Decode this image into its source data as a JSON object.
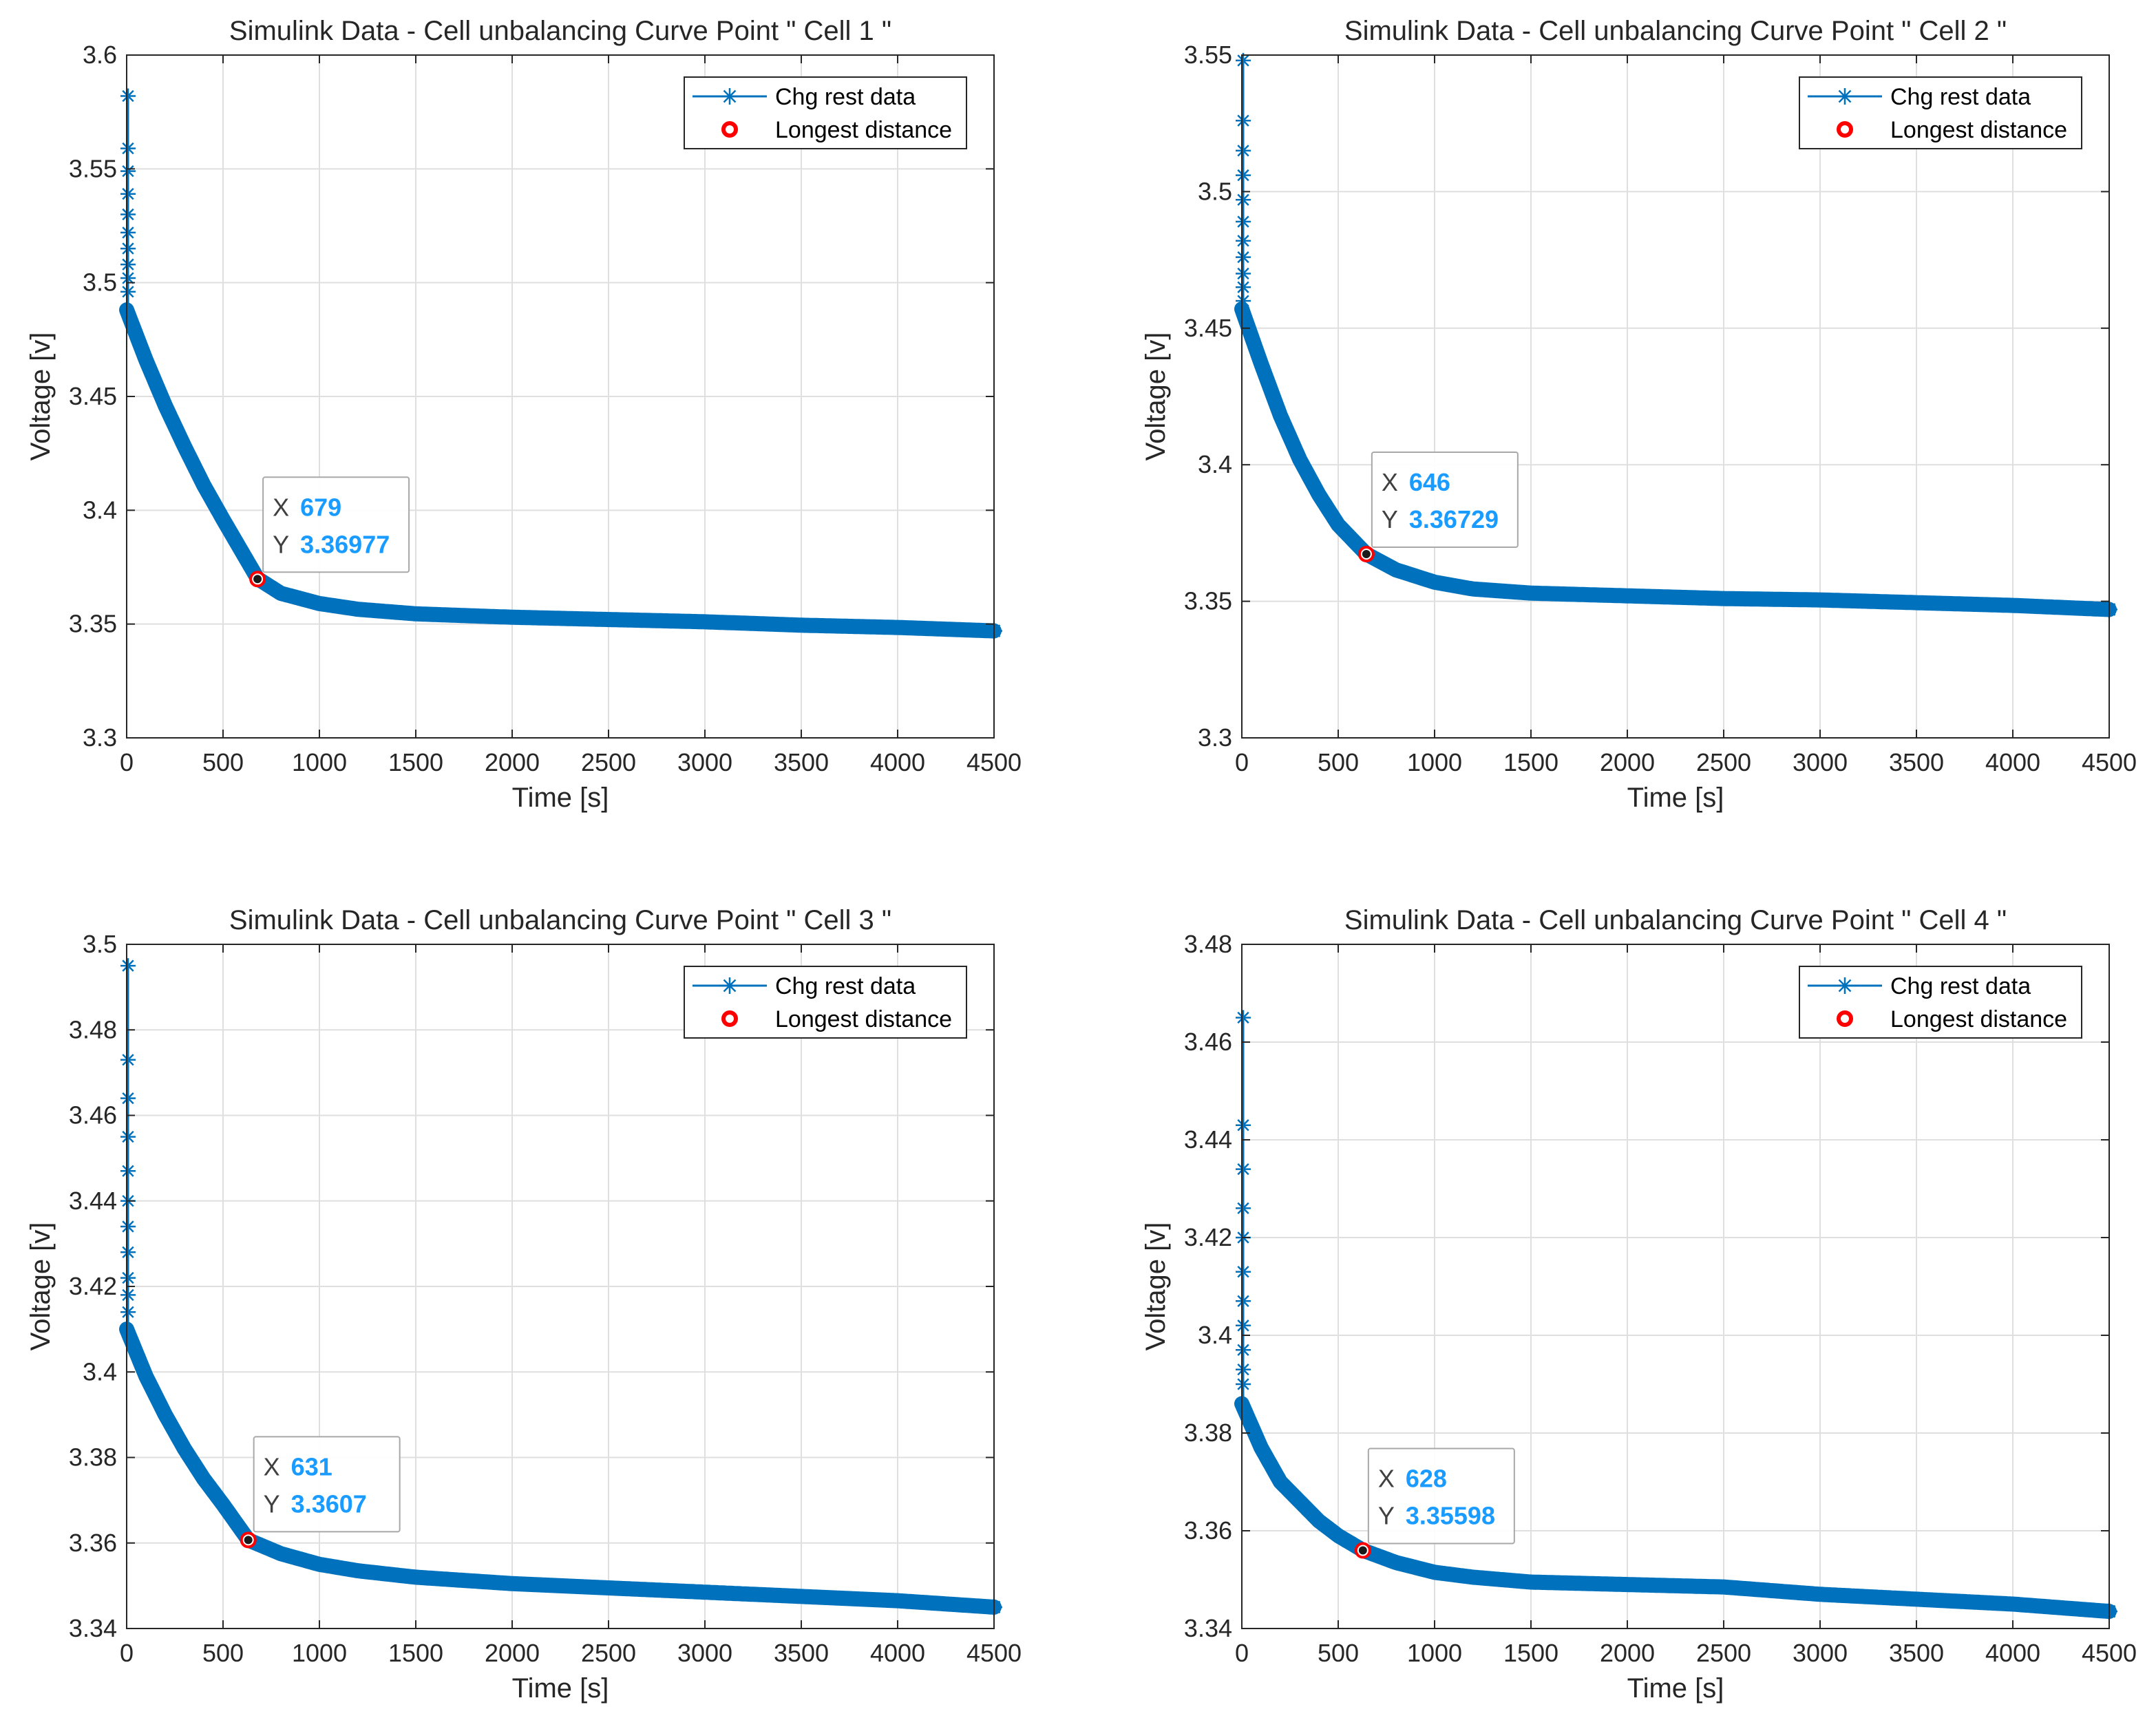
{
  "colors": {
    "series": "#0072bd",
    "marker_edge": "#ff0000",
    "grid": "#dfdfdf",
    "axis": "#262626",
    "datatip_value": "#1a9bff"
  },
  "chart_data": [
    {
      "type": "line",
      "title": "Simulink Data - Cell unbalancing Curve Point \" Cell 1 \"",
      "xlabel": "Time [s]",
      "ylabel": "Voltage [v]",
      "xlim": [
        0,
        4500
      ],
      "ylim": [
        3.3,
        3.6
      ],
      "xticks": [
        0,
        500,
        1000,
        1500,
        2000,
        2500,
        3000,
        3500,
        4000,
        4500
      ],
      "xtick_labels": [
        "0",
        "500",
        "1000",
        "1500",
        "2000",
        "2500",
        "3000",
        "3500",
        "4000",
        "4500"
      ],
      "yticks": [
        3.3,
        3.35,
        3.4,
        3.45,
        3.5,
        3.55,
        3.6
      ],
      "ytick_labels": [
        "3.3",
        "3.35",
        "3.4",
        "3.45",
        "3.5",
        "3.55",
        "3.6"
      ],
      "grid": true,
      "legend_position": "top-right",
      "legend": [
        "Chg rest data",
        "Longest distance"
      ],
      "series": [
        {
          "name": "Chg rest data",
          "spike": [
            3.582,
            3.559,
            3.549,
            3.539,
            3.53,
            3.522,
            3.515,
            3.508,
            3.502,
            3.496
          ],
          "x": [
            0,
            100,
            200,
            300,
            400,
            500,
            679,
            800,
            1000,
            1200,
            1500,
            2000,
            2500,
            3000,
            3500,
            4000,
            4500
          ],
          "y": [
            3.488,
            3.466,
            3.446,
            3.428,
            3.411,
            3.396,
            3.37,
            3.3635,
            3.359,
            3.3565,
            3.3545,
            3.353,
            3.352,
            3.351,
            3.3495,
            3.3485,
            3.347
          ]
        }
      ],
      "marker": {
        "name": "Longest distance",
        "x": 679,
        "y": 3.36977
      },
      "datatip": {
        "x_key": "X",
        "y_key": "Y",
        "x_value": "679",
        "y_value": "3.36977"
      }
    },
    {
      "type": "line",
      "title": "Simulink Data - Cell unbalancing Curve Point \" Cell 2 \"",
      "xlabel": "Time [s]",
      "ylabel": "Voltage [v]",
      "xlim": [
        0,
        4500
      ],
      "ylim": [
        3.3,
        3.55
      ],
      "xticks": [
        0,
        500,
        1000,
        1500,
        2000,
        2500,
        3000,
        3500,
        4000,
        4500
      ],
      "xtick_labels": [
        "0",
        "500",
        "1000",
        "1500",
        "2000",
        "2500",
        "3000",
        "3500",
        "4000",
        "4500"
      ],
      "yticks": [
        3.3,
        3.35,
        3.4,
        3.45,
        3.5,
        3.55
      ],
      "ytick_labels": [
        "3.3",
        "3.35",
        "3.4",
        "3.45",
        "3.5",
        "3.55"
      ],
      "grid": true,
      "legend_position": "top-right",
      "legend": [
        "Chg rest data",
        "Longest distance"
      ],
      "series": [
        {
          "name": "Chg rest data",
          "spike": [
            3.548,
            3.526,
            3.515,
            3.506,
            3.497,
            3.489,
            3.482,
            3.476,
            3.47,
            3.465,
            3.46
          ],
          "x": [
            0,
            100,
            200,
            300,
            400,
            500,
            646,
            800,
            1000,
            1200,
            1500,
            2000,
            2500,
            3000,
            3500,
            4000,
            4500
          ],
          "y": [
            3.457,
            3.437,
            3.418,
            3.402,
            3.389,
            3.378,
            3.3673,
            3.3615,
            3.357,
            3.3545,
            3.353,
            3.352,
            3.351,
            3.3505,
            3.3495,
            3.3485,
            3.347
          ]
        }
      ],
      "marker": {
        "name": "Longest distance",
        "x": 646,
        "y": 3.36729
      },
      "datatip": {
        "x_key": "X",
        "y_key": "Y",
        "x_value": "646",
        "y_value": "3.36729"
      }
    },
    {
      "type": "line",
      "title": "Simulink Data - Cell unbalancing Curve Point \" Cell 3 \"",
      "xlabel": "Time [s]",
      "ylabel": "Voltage [v]",
      "xlim": [
        0,
        4500
      ],
      "ylim": [
        3.34,
        3.5
      ],
      "xticks": [
        0,
        500,
        1000,
        1500,
        2000,
        2500,
        3000,
        3500,
        4000,
        4500
      ],
      "xtick_labels": [
        "0",
        "500",
        "1000",
        "1500",
        "2000",
        "2500",
        "3000",
        "3500",
        "4000",
        "4500"
      ],
      "yticks": [
        3.34,
        3.36,
        3.38,
        3.4,
        3.42,
        3.44,
        3.46,
        3.48,
        3.5
      ],
      "ytick_labels": [
        "3.34",
        "3.36",
        "3.38",
        "3.4",
        "3.42",
        "3.44",
        "3.46",
        "3.48",
        "3.5"
      ],
      "grid": true,
      "legend_position": "top-right",
      "legend": [
        "Chg rest data",
        "Longest distance"
      ],
      "series": [
        {
          "name": "Chg rest data",
          "spike": [
            3.495,
            3.473,
            3.464,
            3.455,
            3.447,
            3.44,
            3.434,
            3.428,
            3.422,
            3.418,
            3.414
          ],
          "x": [
            0,
            100,
            200,
            300,
            400,
            500,
            631,
            800,
            1000,
            1200,
            1500,
            2000,
            2500,
            3000,
            3500,
            4000,
            4500
          ],
          "y": [
            3.41,
            3.399,
            3.39,
            3.382,
            3.375,
            3.369,
            3.3607,
            3.3575,
            3.355,
            3.3535,
            3.352,
            3.3505,
            3.3495,
            3.3485,
            3.3475,
            3.3465,
            3.345
          ]
        }
      ],
      "marker": {
        "name": "Longest distance",
        "x": 631,
        "y": 3.3607
      },
      "datatip": {
        "x_key": "X",
        "y_key": "Y",
        "x_value": "631",
        "y_value": "3.3607"
      }
    },
    {
      "type": "line",
      "title": "Simulink Data - Cell unbalancing Curve Point \" Cell 4 \"",
      "xlabel": "Time [s]",
      "ylabel": "Voltage [v]",
      "xlim": [
        0,
        4500
      ],
      "ylim": [
        3.34,
        3.48
      ],
      "xticks": [
        0,
        500,
        1000,
        1500,
        2000,
        2500,
        3000,
        3500,
        4000,
        4500
      ],
      "xtick_labels": [
        "0",
        "500",
        "1000",
        "1500",
        "2000",
        "2500",
        "3000",
        "3500",
        "4000",
        "4500"
      ],
      "yticks": [
        3.34,
        3.36,
        3.38,
        3.4,
        3.42,
        3.44,
        3.46,
        3.48
      ],
      "ytick_labels": [
        "3.34",
        "3.36",
        "3.38",
        "3.4",
        "3.42",
        "3.44",
        "3.46",
        "3.48"
      ],
      "grid": true,
      "legend_position": "top-right",
      "legend": [
        "Chg rest data",
        "Longest distance"
      ],
      "series": [
        {
          "name": "Chg rest data",
          "spike": [
            3.465,
            3.443,
            3.434,
            3.426,
            3.42,
            3.413,
            3.407,
            3.402,
            3.397,
            3.393,
            3.39
          ],
          "x": [
            0,
            100,
            200,
            300,
            400,
            500,
            628,
            800,
            1000,
            1200,
            1500,
            2000,
            2500,
            3000,
            3500,
            4000,
            4500
          ],
          "y": [
            3.386,
            3.377,
            3.37,
            3.366,
            3.362,
            3.359,
            3.356,
            3.3535,
            3.3515,
            3.3505,
            3.3495,
            3.349,
            3.3485,
            3.347,
            3.346,
            3.345,
            3.3435
          ]
        }
      ],
      "marker": {
        "name": "Longest distance",
        "x": 628,
        "y": 3.35598
      },
      "datatip": {
        "x_key": "X",
        "y_key": "Y",
        "x_value": "628",
        "y_value": "3.35598"
      }
    }
  ]
}
